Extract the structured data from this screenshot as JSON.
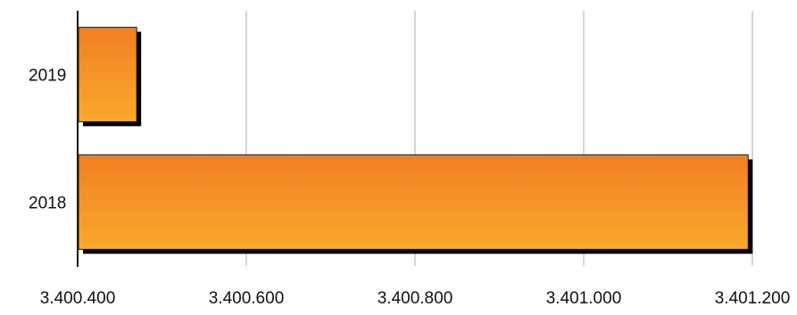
{
  "chart_data": {
    "type": "bar",
    "orientation": "horizontal",
    "categories": [
      "2019",
      "2018"
    ],
    "values": [
      3400470,
      3401195
    ],
    "xlim": [
      3400400,
      3401200
    ],
    "ticks": [
      3400400,
      3400600,
      3400800,
      3401000,
      3401200
    ],
    "tick_labels": [
      "3.400.400",
      "3.400.600",
      "3.400.800",
      "3.401.000",
      "3.401.200"
    ],
    "grid": true,
    "legend": "none",
    "title": "",
    "xlabel": "",
    "ylabel": ""
  },
  "colors": {
    "bar_top": "#f27f22",
    "bar_bottom": "#f9a92c",
    "bar_border": "#1a1a1a",
    "shadow": "#000000",
    "grid": "#c8c8c8",
    "axis": "#111111"
  }
}
